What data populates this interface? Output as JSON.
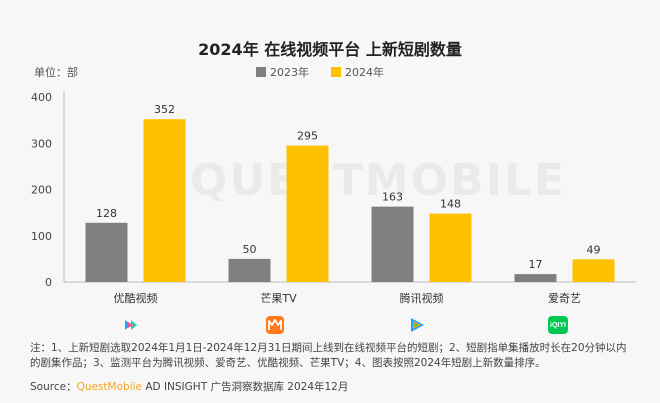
{
  "chart_data": {
    "type": "bar",
    "title": "2024年 在线视频平台 上新短剧数量",
    "unit_label": "单位：部",
    "categories": [
      "优酷视频",
      "芒果TV",
      "腾讯视频",
      "爱奇艺"
    ],
    "series": [
      {
        "name": "2023年",
        "values": [
          128,
          50,
          163,
          17
        ],
        "color": "#7f7f7f"
      },
      {
        "name": "2024年",
        "values": [
          352,
          295,
          148,
          49
        ],
        "color": "#ffc000"
      }
    ],
    "ylim": [
      0,
      400
    ],
    "yticks": [
      0,
      100,
      200,
      300,
      400
    ],
    "grid": false,
    "legend_position": "top"
  },
  "icons": [
    "youku-icon",
    "mgtv-icon",
    "tencent-video-icon",
    "iqiyi-icon"
  ],
  "iqiyi_logo_text": "iQIYI",
  "watermark": "QUESTMOBILE",
  "note": "注：1、上新短剧选取2024年1月1日-2024年12月31日期间上线到在线视频平台的短剧；2、短剧指单集播放时长在20分钟以内的剧集作品；3、监测平台为腾讯视频、爱奇艺、优酷视频、芒果TV；4、图表按照2024年短剧上新数量排序。",
  "source": {
    "prefix": "Source：",
    "brand": "QuestMobile",
    "rest": " AD INSIGHT 广告洞察数据库 2024年12月"
  }
}
